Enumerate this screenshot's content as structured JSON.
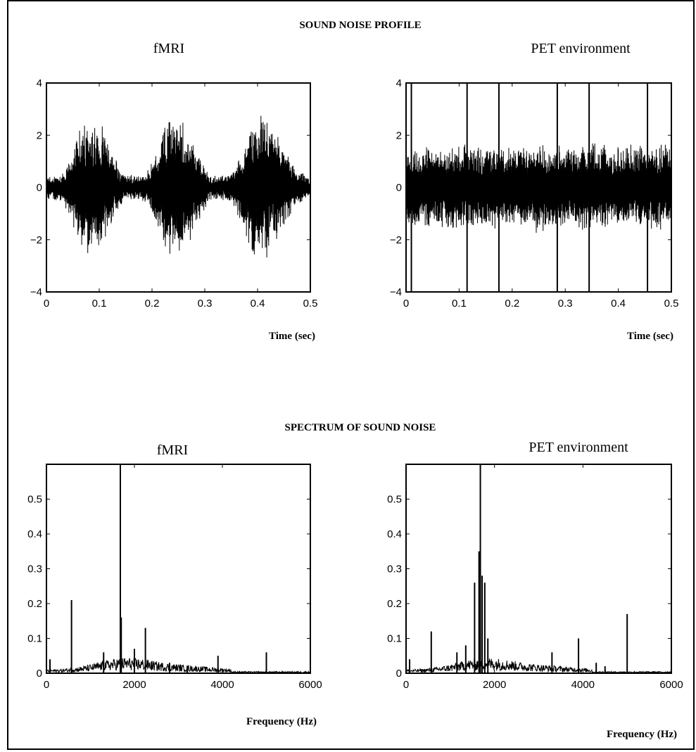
{
  "section_titles": {
    "time": "SOUND NOISE PROFILE",
    "spectrum": "SPECTRUM OF SOUND NOISE"
  },
  "chart_data": [
    {
      "type": "line",
      "title": "fMRI",
      "xlabel": "Time (sec)",
      "ylabel": "",
      "xlim": [
        0,
        0.5
      ],
      "ylim": [
        -4,
        4
      ],
      "xticks": [
        "0",
        "0.1",
        "0.2",
        "0.3",
        "0.4",
        "0.5"
      ],
      "yticks": [
        "-4",
        "-2",
        "0",
        "2",
        "4"
      ],
      "envelope": {
        "x": [
          0,
          0.03,
          0.05,
          0.07,
          0.09,
          0.11,
          0.13,
          0.15,
          0.17,
          0.19,
          0.21,
          0.23,
          0.25,
          0.27,
          0.29,
          0.31,
          0.33,
          0.35,
          0.37,
          0.39,
          0.41,
          0.43,
          0.45,
          0.47,
          0.5
        ],
        "y": [
          0.5,
          0.6,
          1.5,
          2.9,
          2.8,
          2.3,
          1.2,
          0.5,
          0.5,
          0.6,
          1.6,
          2.9,
          3.0,
          2.3,
          1.3,
          0.5,
          0.5,
          0.6,
          1.5,
          2.8,
          3.0,
          2.5,
          1.6,
          0.8,
          0.4
        ]
      },
      "legend": "none",
      "grid": false
    },
    {
      "type": "line",
      "title": "PET environment",
      "xlabel": "Time (sec)",
      "ylabel": "",
      "xlim": [
        0,
        0.5
      ],
      "ylim": [
        -4,
        4
      ],
      "xticks": [
        "0",
        "0.1",
        "0.2",
        "0.3",
        "0.4",
        "0.5"
      ],
      "yticks": [
        "-4",
        "-2",
        "0",
        "2",
        "4"
      ],
      "envelope": {
        "x": [
          0,
          0.05,
          0.1,
          0.15,
          0.2,
          0.25,
          0.3,
          0.35,
          0.4,
          0.45,
          0.5
        ],
        "y": [
          1.8,
          1.6,
          1.8,
          1.7,
          1.6,
          1.8,
          1.7,
          1.8,
          1.6,
          1.8,
          1.7
        ]
      },
      "spikes_x": [
        0.01,
        0.115,
        0.175,
        0.285,
        0.345,
        0.455
      ],
      "spike_amplitude": 4,
      "legend": "none",
      "grid": false
    },
    {
      "type": "line",
      "title": "fMRI",
      "xlabel": "Frequency (Hz)",
      "ylabel": "",
      "xlim": [
        0,
        6000
      ],
      "ylim": [
        0,
        0.6
      ],
      "xticks": [
        "0",
        "2000",
        "4000",
        "6000"
      ],
      "yticks": [
        "0",
        "0.1",
        "0.2",
        "0.3",
        "0.4",
        "0.5"
      ],
      "peaks": {
        "x": [
          80,
          570,
          1300,
          1680,
          1700,
          2000,
          2250,
          2800,
          3200,
          3900,
          5000
        ],
        "y": [
          0.04,
          0.21,
          0.06,
          0.6,
          0.16,
          0.07,
          0.13,
          0.03,
          0.02,
          0.05,
          0.06
        ]
      },
      "legend": "none",
      "grid": false
    },
    {
      "type": "line",
      "title": "PET environment",
      "xlabel": "Frequency (Hz)",
      "ylabel": "",
      "xlim": [
        0,
        6000
      ],
      "ylim": [
        0,
        0.6
      ],
      "xticks": [
        "0",
        "2000",
        "4000",
        "6000"
      ],
      "yticks": [
        "0",
        "0.1",
        "0.2",
        "0.3",
        "0.4",
        "0.5"
      ],
      "peaks": {
        "x": [
          80,
          570,
          1150,
          1350,
          1550,
          1650,
          1680,
          1720,
          1780,
          1850,
          3300,
          3900,
          4300,
          4500,
          5000
        ],
        "y": [
          0.04,
          0.12,
          0.06,
          0.08,
          0.26,
          0.35,
          0.6,
          0.28,
          0.26,
          0.1,
          0.06,
          0.1,
          0.03,
          0.02,
          0.17
        ]
      },
      "legend": "none",
      "grid": false
    }
  ]
}
